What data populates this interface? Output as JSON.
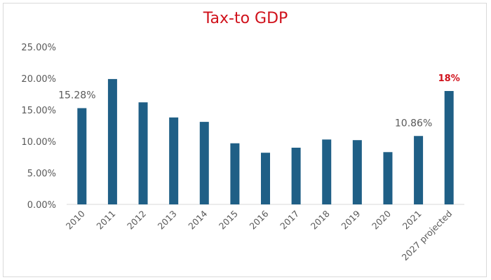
{
  "chart_data": {
    "type": "bar",
    "title": "Tax-to GDP",
    "categories": [
      "2010",
      "2011",
      "2012",
      "2013",
      "2014",
      "2015",
      "2016",
      "2017",
      "2018",
      "2019",
      "2020",
      "2021",
      "2027 projected"
    ],
    "values": [
      15.28,
      19.9,
      16.2,
      13.8,
      13.1,
      9.7,
      8.2,
      9.0,
      10.3,
      10.2,
      8.3,
      10.86,
      18
    ],
    "data_labels": [
      {
        "category": "2010",
        "text": "15.28%",
        "color": "#595959"
      },
      {
        "category": "2021",
        "text": "10.86%",
        "color": "#595959"
      },
      {
        "category": "2027 projected",
        "text": "18%",
        "color": "#d0111b"
      }
    ],
    "ylim": [
      0,
      25
    ],
    "yticks": [
      "0.00%",
      "5.00%",
      "10.00%",
      "15.00%",
      "20.00%",
      "25.00%"
    ],
    "xlabel": "",
    "ylabel": "",
    "grid": false,
    "bar_color": "#1f5f86",
    "title_color": "#d0111b"
  }
}
